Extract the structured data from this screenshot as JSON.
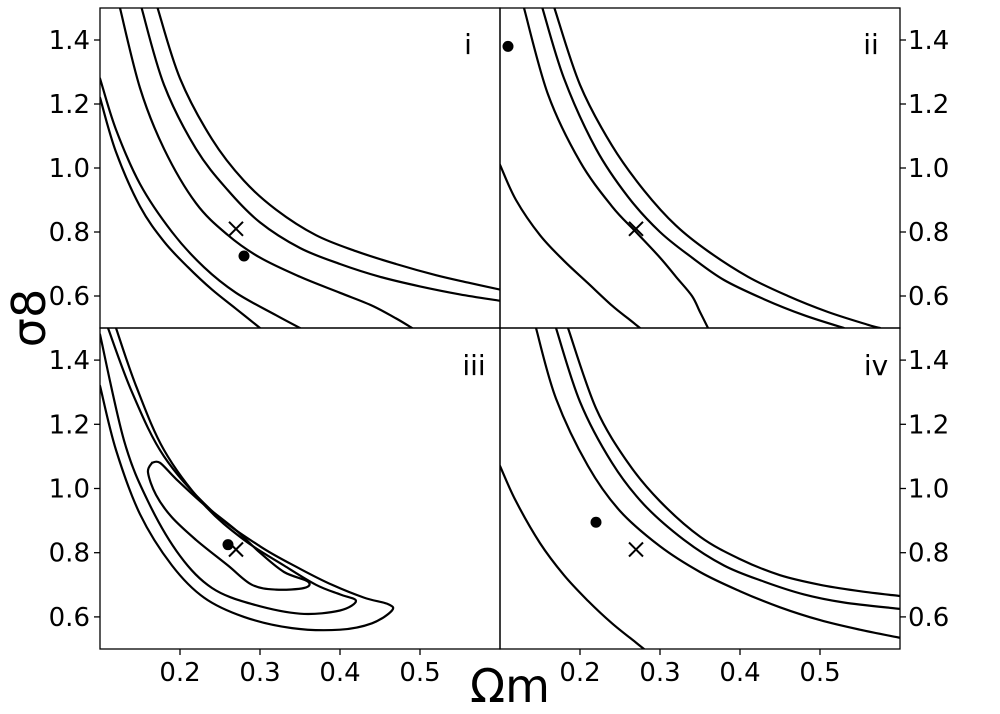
{
  "chart_data": {
    "type": "contour",
    "layout": "2x2 grid of panels with shared axes",
    "xlabel": "Ωm",
    "ylabel": "σ8",
    "xlim": [
      0.1,
      0.6
    ],
    "ylim": [
      0.5,
      1.5
    ],
    "x_ticks": [
      0.2,
      0.3,
      0.4,
      0.5
    ],
    "x_tick_labels": [
      "0.2",
      "0.3",
      "0.4",
      "0.5"
    ],
    "y_ticks": [
      0.6,
      0.8,
      1.0,
      1.2,
      1.4
    ],
    "y_tick_labels": [
      "0.6",
      "0.8",
      "1.0",
      "1.2",
      "1.4"
    ],
    "grid": false,
    "line_color": "#000000",
    "markers": {
      "cross": "fiducial value",
      "dot": "best fit"
    },
    "panels": [
      {
        "id": "i",
        "label": "i",
        "cross": [
          0.27,
          0.81
        ],
        "dot": [
          0.28,
          0.725
        ],
        "contours": [
          [
            [
              0.1,
              1.22
            ],
            [
              0.12,
              1.05
            ],
            [
              0.15,
              0.88
            ],
            [
              0.18,
              0.77
            ],
            [
              0.21,
              0.69
            ],
            [
              0.24,
              0.62
            ],
            [
              0.27,
              0.56
            ],
            [
              0.3,
              0.5
            ]
          ],
          [
            [
              0.1,
              1.28
            ],
            [
              0.12,
              1.12
            ],
            [
              0.15,
              0.95
            ],
            [
              0.19,
              0.8
            ],
            [
              0.23,
              0.69
            ],
            [
              0.27,
              0.61
            ],
            [
              0.32,
              0.54
            ],
            [
              0.35,
              0.5
            ]
          ],
          [
            [
              0.125,
              1.5
            ],
            [
              0.15,
              1.25
            ],
            [
              0.18,
              1.06
            ],
            [
              0.22,
              0.89
            ],
            [
              0.26,
              0.79
            ],
            [
              0.3,
              0.72
            ],
            [
              0.35,
              0.66
            ],
            [
              0.4,
              0.61
            ],
            [
              0.44,
              0.57
            ],
            [
              0.47,
              0.53
            ],
            [
              0.49,
              0.5
            ]
          ],
          [
            [
              0.152,
              1.5
            ],
            [
              0.18,
              1.26
            ],
            [
              0.22,
              1.06
            ],
            [
              0.26,
              0.93
            ],
            [
              0.3,
              0.83
            ],
            [
              0.35,
              0.75
            ],
            [
              0.4,
              0.7
            ],
            [
              0.45,
              0.66
            ],
            [
              0.5,
              0.63
            ],
            [
              0.55,
              0.605
            ],
            [
              0.6,
              0.585
            ]
          ],
          [
            [
              0.172,
              1.5
            ],
            [
              0.2,
              1.28
            ],
            [
              0.24,
              1.09
            ],
            [
              0.28,
              0.96
            ],
            [
              0.32,
              0.87
            ],
            [
              0.37,
              0.79
            ],
            [
              0.42,
              0.74
            ],
            [
              0.47,
              0.7
            ],
            [
              0.52,
              0.665
            ],
            [
              0.56,
              0.642
            ],
            [
              0.6,
              0.62
            ]
          ]
        ]
      },
      {
        "id": "ii",
        "label": "ii",
        "cross": [
          0.27,
          0.81
        ],
        "dot": [
          0.11,
          1.38
        ],
        "contours": [
          [
            [
              0.1,
              1.01
            ],
            [
              0.12,
              0.9
            ],
            [
              0.15,
              0.79
            ],
            [
              0.18,
              0.71
            ],
            [
              0.21,
              0.64
            ],
            [
              0.24,
              0.57
            ],
            [
              0.26,
              0.53
            ],
            [
              0.275,
              0.5
            ]
          ],
          [
            [
              0.13,
              1.5
            ],
            [
              0.16,
              1.23
            ],
            [
              0.2,
              1.02
            ],
            [
              0.24,
              0.88
            ],
            [
              0.27,
              0.8
            ],
            [
              0.3,
              0.72
            ],
            [
              0.32,
              0.66
            ],
            [
              0.34,
              0.6
            ],
            [
              0.35,
              0.55
            ],
            [
              0.36,
              0.5
            ]
          ],
          [
            [
              0.153,
              1.5
            ],
            [
              0.18,
              1.28
            ],
            [
              0.22,
              1.06
            ],
            [
              0.26,
              0.91
            ],
            [
              0.3,
              0.8
            ],
            [
              0.34,
              0.72
            ],
            [
              0.38,
              0.65
            ],
            [
              0.43,
              0.59
            ],
            [
              0.48,
              0.54
            ],
            [
              0.53,
              0.5
            ]
          ],
          [
            [
              0.168,
              1.5
            ],
            [
              0.2,
              1.26
            ],
            [
              0.24,
              1.07
            ],
            [
              0.28,
              0.93
            ],
            [
              0.32,
              0.82
            ],
            [
              0.36,
              0.74
            ],
            [
              0.41,
              0.66
            ],
            [
              0.46,
              0.6
            ],
            [
              0.51,
              0.55
            ],
            [
              0.56,
              0.51
            ],
            [
              0.575,
              0.5
            ]
          ]
        ]
      },
      {
        "id": "iii",
        "label": "iii",
        "cross": [
          0.27,
          0.81
        ],
        "dot": [
          0.26,
          0.825
        ],
        "contours": [
          [
            [
              0.1,
              1.32
            ],
            [
              0.12,
              1.12
            ],
            [
              0.15,
              0.92
            ],
            [
              0.19,
              0.76
            ],
            [
              0.23,
              0.66
            ],
            [
              0.28,
              0.6
            ],
            [
              0.34,
              0.565
            ],
            [
              0.4,
              0.56
            ],
            [
              0.44,
              0.58
            ],
            [
              0.465,
              0.62
            ],
            [
              0.46,
              0.64
            ],
            [
              0.43,
              0.66
            ],
            [
              0.39,
              0.7
            ],
            [
              0.35,
              0.75
            ],
            [
              0.3,
              0.82
            ],
            [
              0.24,
              0.93
            ],
            [
              0.18,
              1.1
            ],
            [
              0.14,
              1.3
            ],
            [
              0.11,
              1.5
            ]
          ],
          [
            [
              0.1,
              1.48
            ],
            [
              0.13,
              1.15
            ],
            [
              0.16,
              0.96
            ],
            [
              0.2,
              0.79
            ],
            [
              0.24,
              0.69
            ],
            [
              0.29,
              0.64
            ],
            [
              0.35,
              0.61
            ],
            [
              0.4,
              0.62
            ],
            [
              0.42,
              0.65
            ],
            [
              0.4,
              0.67
            ],
            [
              0.37,
              0.7
            ],
            [
              0.33,
              0.76
            ],
            [
              0.28,
              0.84
            ],
            [
              0.23,
              0.95
            ],
            [
              0.18,
              1.12
            ],
            [
              0.145,
              1.32
            ],
            [
              0.12,
              1.5
            ]
          ],
          [
            [
              0.165,
              1.08
            ],
            [
              0.16,
              1.05
            ],
            [
              0.17,
              0.98
            ],
            [
              0.19,
              0.91
            ],
            [
              0.22,
              0.84
            ],
            [
              0.26,
              0.76
            ],
            [
              0.29,
              0.7
            ],
            [
              0.32,
              0.685
            ],
            [
              0.355,
              0.69
            ],
            [
              0.36,
              0.71
            ],
            [
              0.33,
              0.74
            ],
            [
              0.3,
              0.8
            ],
            [
              0.27,
              0.87
            ],
            [
              0.23,
              0.95
            ],
            [
              0.195,
              1.03
            ],
            [
              0.175,
              1.08
            ],
            [
              0.165,
              1.08
            ]
          ]
        ]
      },
      {
        "id": "iv",
        "label": "iv",
        "cross": [
          0.27,
          0.81
        ],
        "dot": [
          0.22,
          0.895
        ],
        "contours": [
          [
            [
              0.1,
              1.07
            ],
            [
              0.12,
              0.96
            ],
            [
              0.15,
              0.83
            ],
            [
              0.18,
              0.73
            ],
            [
              0.21,
              0.65
            ],
            [
              0.24,
              0.58
            ],
            [
              0.27,
              0.52
            ],
            [
              0.28,
              0.5
            ]
          ],
          [
            [
              0.145,
              1.5
            ],
            [
              0.17,
              1.28
            ],
            [
              0.21,
              1.07
            ],
            [
              0.25,
              0.93
            ],
            [
              0.3,
              0.82
            ],
            [
              0.35,
              0.74
            ],
            [
              0.4,
              0.68
            ],
            [
              0.45,
              0.63
            ],
            [
              0.5,
              0.59
            ],
            [
              0.55,
              0.56
            ],
            [
              0.6,
              0.535
            ]
          ],
          [
            [
              0.17,
              1.5
            ],
            [
              0.2,
              1.27
            ],
            [
              0.24,
              1.08
            ],
            [
              0.28,
              0.95
            ],
            [
              0.33,
              0.84
            ],
            [
              0.38,
              0.76
            ],
            [
              0.43,
              0.71
            ],
            [
              0.48,
              0.67
            ],
            [
              0.53,
              0.645
            ],
            [
              0.6,
              0.625
            ]
          ],
          [
            [
              0.185,
              1.5
            ],
            [
              0.22,
              1.25
            ],
            [
              0.26,
              1.08
            ],
            [
              0.3,
              0.96
            ],
            [
              0.35,
              0.85
            ],
            [
              0.4,
              0.78
            ],
            [
              0.45,
              0.73
            ],
            [
              0.5,
              0.7
            ],
            [
              0.55,
              0.68
            ],
            [
              0.6,
              0.665
            ]
          ]
        ]
      }
    ]
  }
}
